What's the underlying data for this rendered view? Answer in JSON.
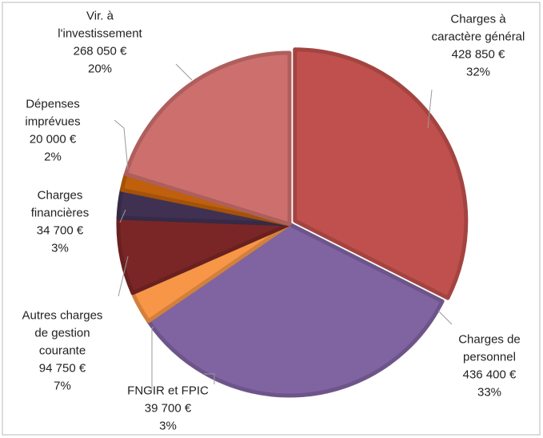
{
  "chart_data": {
    "type": "pie",
    "categories": [
      [
        "Charges à",
        "caractère général"
      ],
      [
        "Charges de",
        "personnel"
      ],
      [
        "FNGIR et FPIC"
      ],
      [
        "Autres charges",
        "de gestion",
        "courante"
      ],
      [
        "Charges",
        "financières"
      ],
      [
        "Dépenses",
        "imprévues"
      ],
      [
        "Vir. à",
        "l'investissement"
      ]
    ],
    "values": [
      428850,
      436400,
      39700,
      94750,
      34700,
      20000,
      268050
    ],
    "value_labels": [
      "428 850 €",
      "436 400 €",
      "39 700 €",
      "94 750 €",
      "34 700 €",
      "20 000 €",
      "268 050 €"
    ],
    "percent_labels": [
      "32%",
      "33%",
      "3%",
      "7%",
      "3%",
      "2%",
      "20%"
    ],
    "colors": [
      "#c0504d",
      "#8064a2",
      "#f79646",
      "#7b2626",
      "#403152",
      "#c0600c",
      "#cd706d"
    ]
  }
}
